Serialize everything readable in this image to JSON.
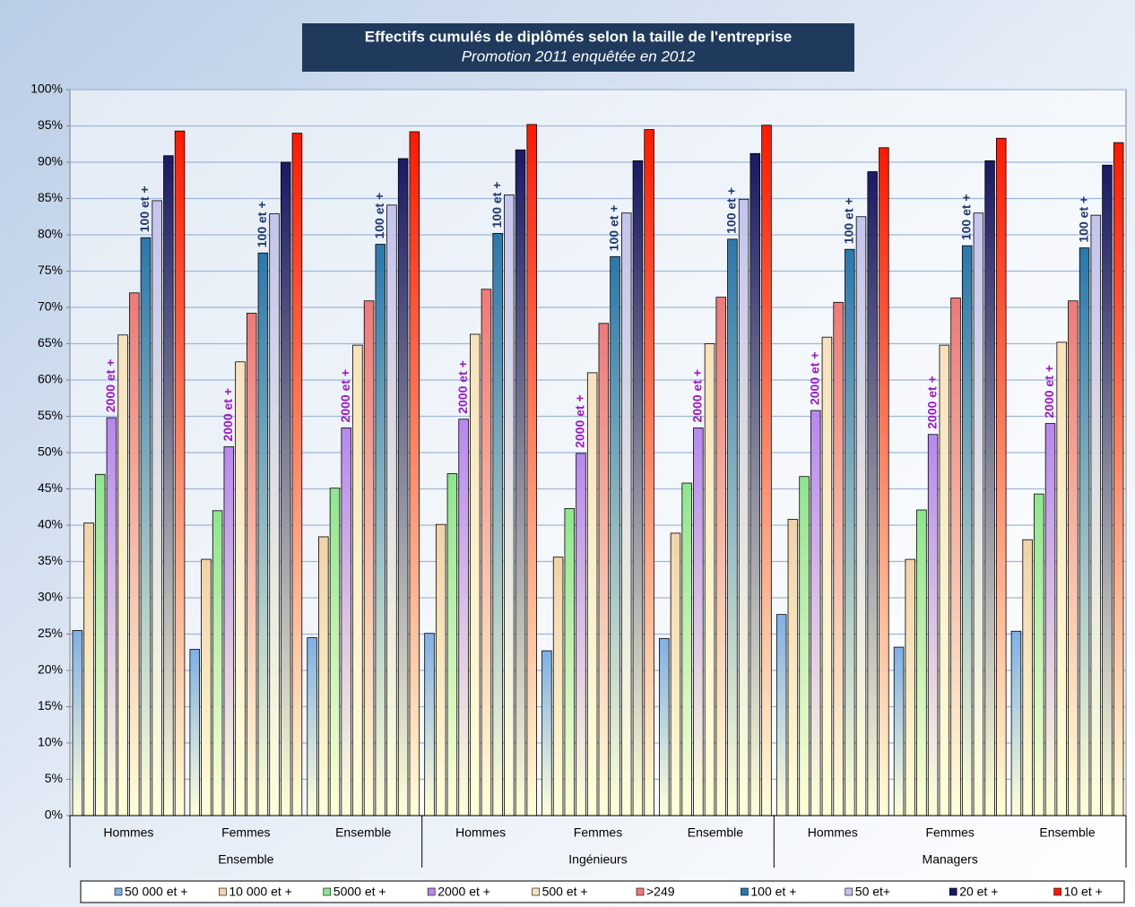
{
  "chart_data": {
    "type": "bar",
    "title": "Effectifs cumulés de diplômés selon la taille de l'entreprise",
    "subtitle": "Promotion 2011 enquêtée en 2012",
    "categories": [
      "Hommes",
      "Femmes",
      "Ensemble",
      "Hommes",
      "Femmes",
      "Ensemble",
      "Hommes",
      "Femmes",
      "Ensemble"
    ],
    "groups": [
      "Ensemble",
      "Ingénieurs",
      "Managers"
    ],
    "ylim": [
      0,
      100
    ],
    "yticks": [
      {
        "value": 0,
        "label": "0%"
      },
      {
        "value": 5,
        "label": "5%"
      },
      {
        "value": 10,
        "label": "10%"
      },
      {
        "value": 15,
        "label": "15%"
      },
      {
        "value": 20,
        "label": "20%"
      },
      {
        "value": 25,
        "label": "25%"
      },
      {
        "value": 30,
        "label": "30%"
      },
      {
        "value": 35,
        "label": "35%"
      },
      {
        "value": 40,
        "label": "40%"
      },
      {
        "value": 45,
        "label": "45%"
      },
      {
        "value": 50,
        "label": "50%"
      },
      {
        "value": 55,
        "label": "55%"
      },
      {
        "value": 60,
        "label": "60%"
      },
      {
        "value": 65,
        "label": "65%"
      },
      {
        "value": 70,
        "label": "70%"
      },
      {
        "value": 75,
        "label": "75%"
      },
      {
        "value": 80,
        "label": "80%"
      },
      {
        "value": 85,
        "label": "85%"
      },
      {
        "value": 90,
        "label": "90%"
      },
      {
        "value": 95,
        "label": "95%"
      },
      {
        "value": 100,
        "label": "100%"
      }
    ],
    "grid": true,
    "legend": "bottom",
    "series": [
      {
        "name": "50 000 et +",
        "color": "#7fb0e6",
        "values": [
          25.5,
          22.9,
          24.5,
          25.1,
          22.7,
          24.4,
          27.7,
          23.2,
          25.4
        ]
      },
      {
        "name": "10 000 et +",
        "color": "#f2d2a8",
        "values": [
          40.3,
          35.3,
          38.4,
          40.1,
          35.6,
          38.9,
          40.8,
          35.3,
          38.0
        ]
      },
      {
        "name": "5000 et +",
        "color": "#8ee68e",
        "values": [
          47.0,
          42.0,
          45.1,
          47.1,
          42.3,
          45.8,
          46.7,
          42.1,
          44.3
        ]
      },
      {
        "name": "2000 et +",
        "color": "#b887f0",
        "annotation": "2000 et +",
        "values": [
          54.8,
          50.8,
          53.4,
          54.6,
          49.9,
          53.4,
          55.8,
          52.5,
          54.0
        ]
      },
      {
        "name": "500 et +",
        "color": "#f8e2bc",
        "values": [
          66.2,
          62.5,
          64.8,
          66.3,
          61.0,
          65.0,
          65.9,
          64.8,
          65.2
        ]
      },
      {
        "name": ">249",
        "color": "#ee7a78",
        "values": [
          72.0,
          69.2,
          70.9,
          72.5,
          67.8,
          71.4,
          70.7,
          71.3,
          70.9
        ]
      },
      {
        "name": "100 et +",
        "color": "#2a78ac",
        "annotation": "100 et +",
        "values": [
          79.6,
          77.5,
          78.7,
          80.2,
          77.0,
          79.4,
          78.0,
          78.5,
          78.2
        ]
      },
      {
        "name": "50 et+",
        "color": "#c4c4ee",
        "values": [
          84.7,
          82.9,
          84.1,
          85.5,
          83.0,
          84.9,
          82.5,
          83.0,
          82.7
        ]
      },
      {
        "name": "20 et +",
        "color": "#1a1a66",
        "values": [
          90.9,
          90.0,
          90.5,
          91.7,
          90.2,
          91.2,
          88.7,
          90.2,
          89.6
        ]
      },
      {
        "name": "10 et +",
        "color": "#ff1a00",
        "values": [
          94.3,
          94.0,
          94.2,
          95.2,
          94.5,
          95.1,
          92.0,
          93.3,
          92.7
        ]
      }
    ]
  }
}
